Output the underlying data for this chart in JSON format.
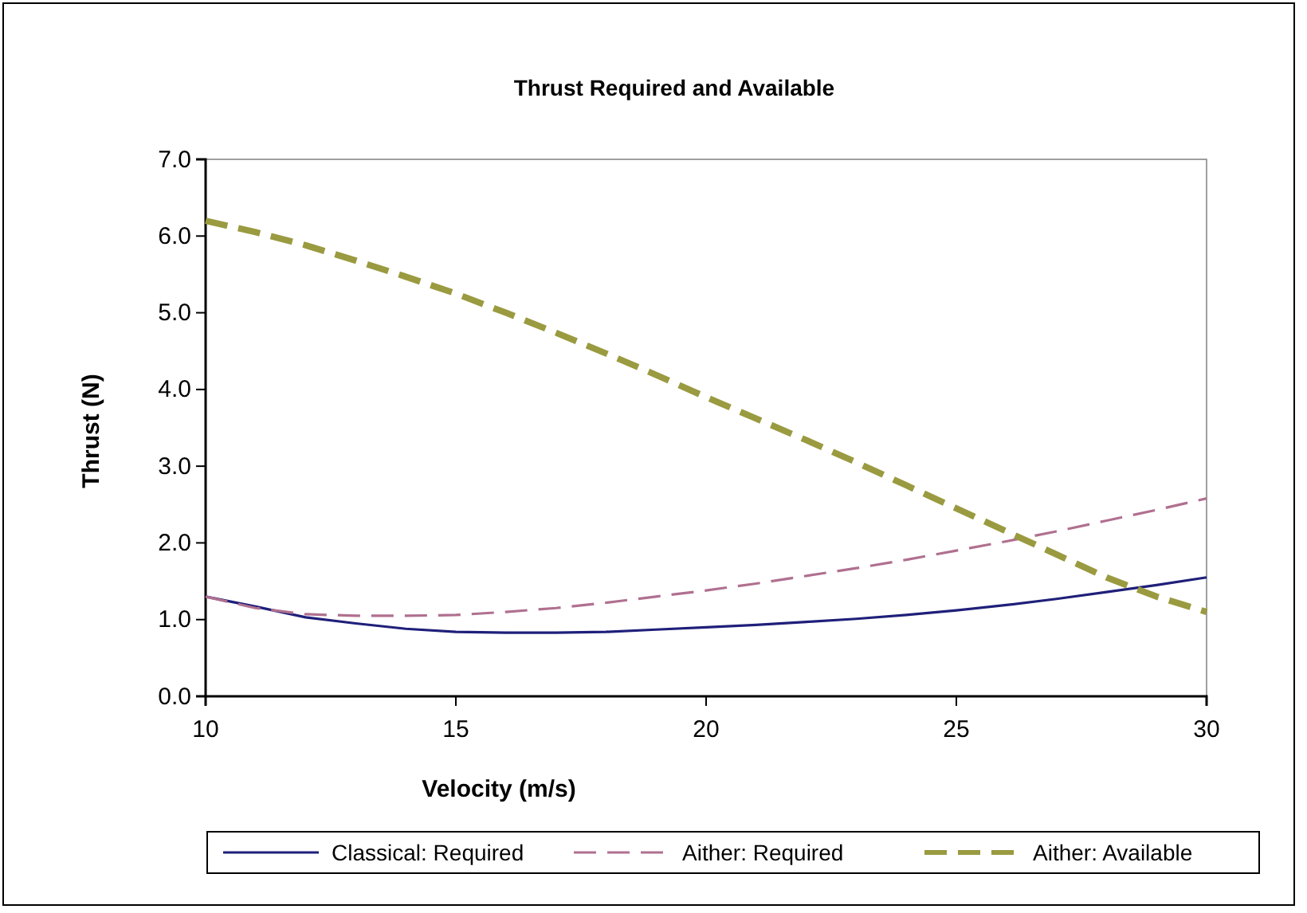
{
  "chart_data": {
    "type": "line",
    "title": "Thrust Required and Available",
    "xlabel": "Velocity (m/s)",
    "ylabel": "Thrust (N)",
    "x": [
      10,
      11,
      12,
      13,
      14,
      15,
      16,
      17,
      18,
      19,
      20,
      21,
      22,
      23,
      24,
      25,
      26,
      27,
      28,
      29,
      30
    ],
    "xlim": [
      10,
      30
    ],
    "xticks": [
      10,
      15,
      20,
      25,
      30
    ],
    "ylim": [
      0,
      7
    ],
    "yticks": [
      {
        "value": 0,
        "label": "0.0"
      },
      {
        "value": 1,
        "label": "1.0"
      },
      {
        "value": 2,
        "label": "2.0"
      },
      {
        "value": 3,
        "label": "3.0"
      },
      {
        "value": 4,
        "label": "4.0"
      },
      {
        "value": 5,
        "label": "5.0"
      },
      {
        "value": 6,
        "label": "6.0"
      },
      {
        "value": 7,
        "label": "7.0"
      }
    ],
    "grid": false,
    "legend": "bottom",
    "marker": "none",
    "series": [
      {
        "name": "Classical: Required",
        "color": "#1f1f7a",
        "line_style": "solid",
        "values": [
          1.3,
          1.17,
          1.03,
          0.95,
          0.88,
          0.84,
          0.83,
          0.83,
          0.84,
          0.87,
          0.9,
          0.93,
          0.97,
          1.01,
          1.06,
          1.12,
          1.19,
          1.27,
          1.36,
          1.45,
          1.55
        ]
      },
      {
        "name": "Aither: Required",
        "color": "#b07090",
        "line_style": "dashed",
        "values": [
          1.3,
          1.15,
          1.07,
          1.05,
          1.05,
          1.06,
          1.1,
          1.15,
          1.22,
          1.3,
          1.38,
          1.47,
          1.57,
          1.67,
          1.78,
          1.9,
          2.02,
          2.15,
          2.29,
          2.43,
          2.58
        ]
      },
      {
        "name": "Aither: Available",
        "color": "#9a9a40",
        "line_style": "dashed",
        "values": [
          6.2,
          6.05,
          5.88,
          5.68,
          5.47,
          5.25,
          5.0,
          4.74,
          4.47,
          4.19,
          3.9,
          3.62,
          3.34,
          3.05,
          2.75,
          2.45,
          2.15,
          1.85,
          1.55,
          1.3,
          1.1
        ]
      }
    ]
  }
}
